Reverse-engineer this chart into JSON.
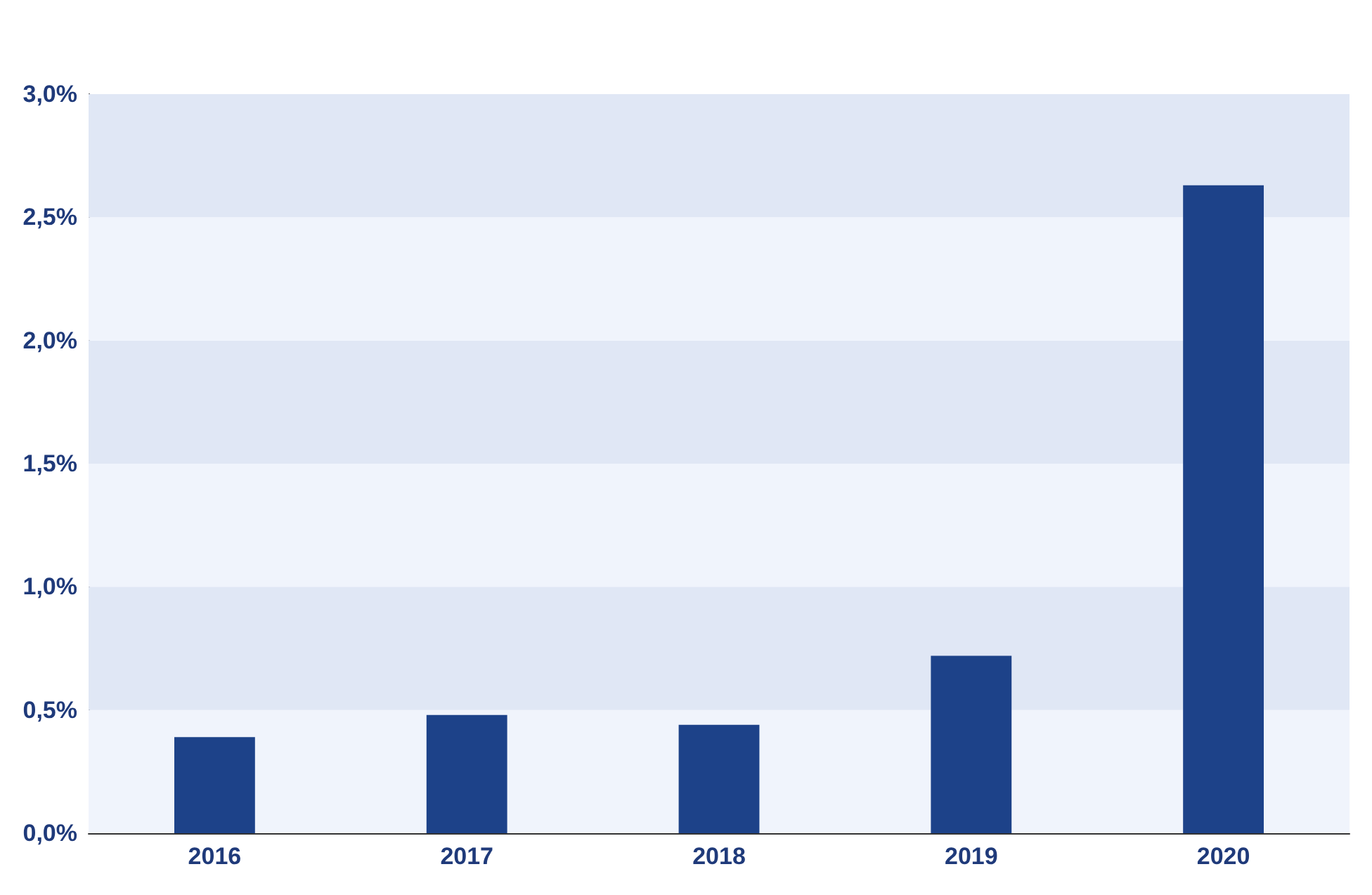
{
  "chart_data": {
    "type": "bar",
    "categories": [
      "2016",
      "2017",
      "2018",
      "2019",
      "2020"
    ],
    "values": [
      0.39,
      0.48,
      0.44,
      0.72,
      2.63
    ],
    "color": "#1d4289",
    "ylim": [
      0,
      3
    ],
    "yticks": [
      {
        "value": 0,
        "label": "0,0%"
      },
      {
        "value": 0.5,
        "label": "0,5%"
      },
      {
        "value": 1,
        "label": "1,0%"
      },
      {
        "value": 1.5,
        "label": "1,5%"
      },
      {
        "value": 2,
        "label": "2,0%"
      },
      {
        "value": 2.5,
        "label": "2,5%"
      },
      {
        "value": 3,
        "label": "3,0%"
      }
    ],
    "bands": [
      {
        "axis": "y",
        "from": 0,
        "to": 0.5,
        "color": "#f0f4fc"
      },
      {
        "axis": "y",
        "from": 0.5,
        "to": 1,
        "color": "#e0e7f5"
      },
      {
        "axis": "y",
        "from": 1,
        "to": 1.5,
        "color": "#f0f4fc"
      },
      {
        "axis": "y",
        "from": 1.5,
        "to": 2,
        "color": "#e0e7f5"
      },
      {
        "axis": "y",
        "from": 2,
        "to": 2.5,
        "color": "#f0f4fc"
      },
      {
        "axis": "y",
        "from": 2.5,
        "to": 3,
        "color": "#e0e7f5"
      }
    ]
  }
}
